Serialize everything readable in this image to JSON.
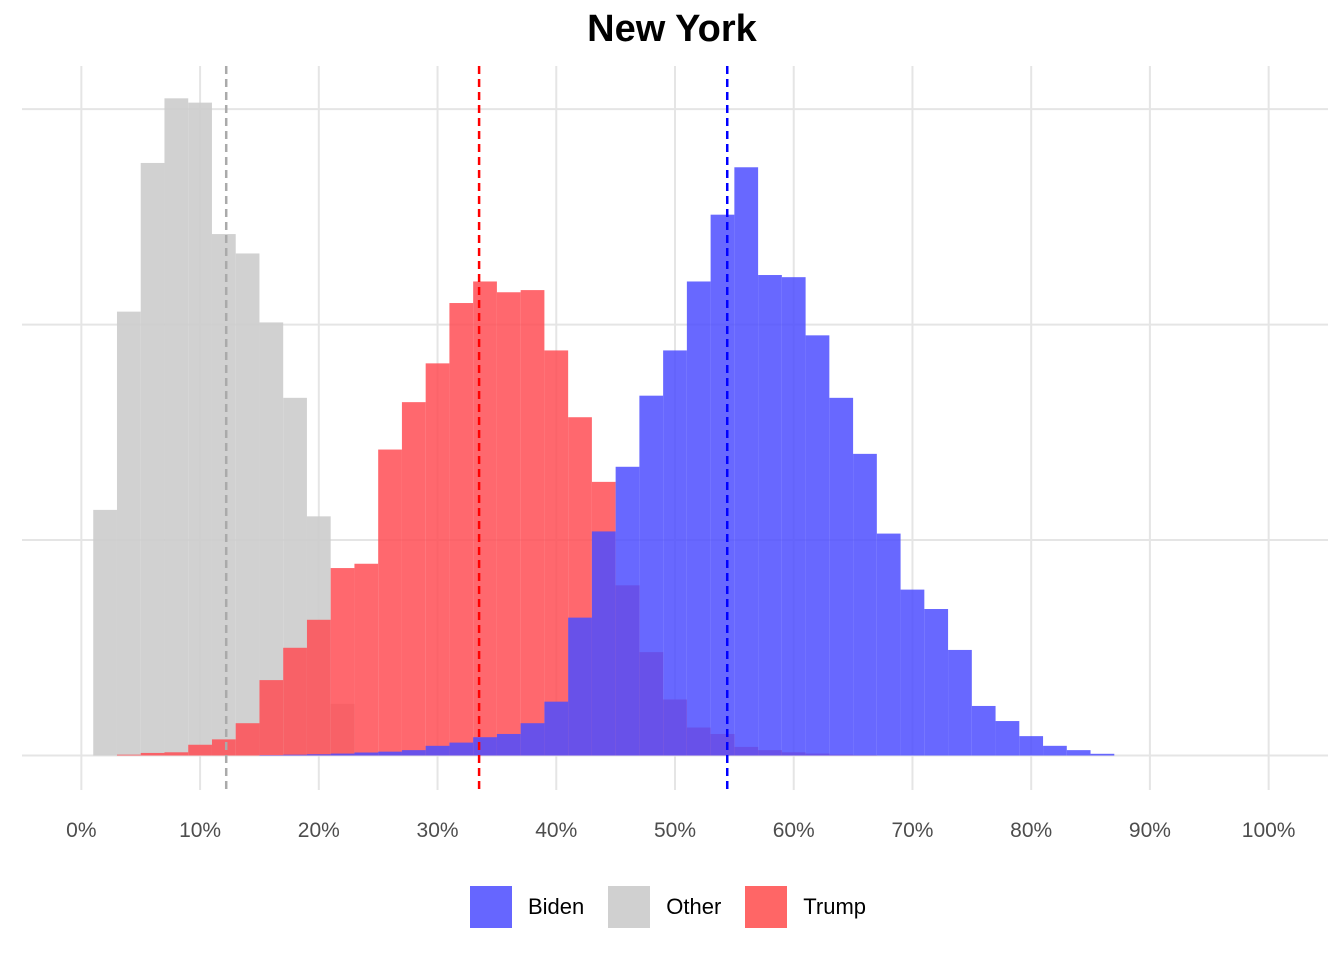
{
  "chart_data": {
    "type": "bar",
    "title": "New York",
    "xlabel": "",
    "ylabel": "",
    "x_axis": {
      "range": [
        -0.05,
        1.05
      ],
      "ticks": [
        0,
        0.1,
        0.2,
        0.3,
        0.4,
        0.5,
        0.6,
        0.7,
        0.8,
        0.9,
        1.0
      ],
      "tick_labels": [
        "0%",
        "10%",
        "20%",
        "30%",
        "40%",
        "50%",
        "60%",
        "70%",
        "80%",
        "90%",
        "100%"
      ]
    },
    "y_axis": {
      "range": [
        -0.016,
        0.32
      ],
      "gridlines": [
        0,
        0.1,
        0.2,
        0.3
      ],
      "tick_labels_shown": false
    },
    "grid": true,
    "legend_position": "bottom",
    "bin_width": 0.02,
    "series": [
      {
        "name": "Other",
        "color": "#cccccc",
        "opacity": 0.9,
        "bin_starts": [
          0.01,
          0.03,
          0.05,
          0.07,
          0.09,
          0.11,
          0.13,
          0.15,
          0.17,
          0.19,
          0.21
        ],
        "values": [
          0.114,
          0.206,
          0.275,
          0.305,
          0.303,
          0.242,
          0.233,
          0.201,
          0.166,
          0.111,
          0.024
        ]
      },
      {
        "name": "Trump",
        "color": "#ff4d55",
        "opacity": 0.85,
        "bin_starts": [
          0.03,
          0.05,
          0.07,
          0.09,
          0.11,
          0.13,
          0.15,
          0.17,
          0.19,
          0.21,
          0.23,
          0.25,
          0.27,
          0.29,
          0.31,
          0.33,
          0.35,
          0.37,
          0.39,
          0.41,
          0.43,
          0.45,
          0.47,
          0.49,
          0.51,
          0.53,
          0.55,
          0.57,
          0.59,
          0.61,
          0.63,
          0.65
        ],
        "values": [
          0.0004,
          0.0012,
          0.0015,
          0.005,
          0.0075,
          0.015,
          0.035,
          0.05,
          0.063,
          0.087,
          0.089,
          0.142,
          0.164,
          0.182,
          0.21,
          0.22,
          0.215,
          0.216,
          0.188,
          0.157,
          0.127,
          0.079,
          0.048,
          0.026,
          0.013,
          0.01,
          0.004,
          0.0025,
          0.0015,
          0.0009,
          0.0004,
          0.0002
        ]
      },
      {
        "name": "Biden",
        "color": "#4d4dff",
        "opacity": 0.85,
        "bin_starts": [
          0.15,
          0.17,
          0.19,
          0.21,
          0.23,
          0.25,
          0.27,
          0.29,
          0.31,
          0.33,
          0.35,
          0.37,
          0.39,
          0.41,
          0.43,
          0.45,
          0.47,
          0.49,
          0.51,
          0.53,
          0.55,
          0.57,
          0.59,
          0.61,
          0.63,
          0.65,
          0.67,
          0.69,
          0.71,
          0.73,
          0.75,
          0.77,
          0.79,
          0.81,
          0.83,
          0.85
        ],
        "values": [
          0.0002,
          0.0004,
          0.0006,
          0.0009,
          0.0014,
          0.0018,
          0.0025,
          0.0045,
          0.006,
          0.0085,
          0.01,
          0.015,
          0.025,
          0.064,
          0.104,
          0.134,
          0.167,
          0.188,
          0.22,
          0.251,
          0.273,
          0.223,
          0.222,
          0.195,
          0.166,
          0.14,
          0.103,
          0.077,
          0.068,
          0.049,
          0.023,
          0.016,
          0.009,
          0.0045,
          0.0025,
          0.0008
        ]
      }
    ],
    "reference_lines": [
      {
        "series": "Other",
        "x": 0.122,
        "color": "#aaaaaa"
      },
      {
        "series": "Trump",
        "x": 0.335,
        "color": "#ff0000"
      },
      {
        "series": "Biden",
        "x": 0.544,
        "color": "#0000ff"
      }
    ]
  },
  "legend": {
    "items": [
      {
        "label": "Biden",
        "color": "#6666ff"
      },
      {
        "label": "Other",
        "color": "#d0d0d0"
      },
      {
        "label": "Trump",
        "color": "#ff6666"
      }
    ]
  }
}
